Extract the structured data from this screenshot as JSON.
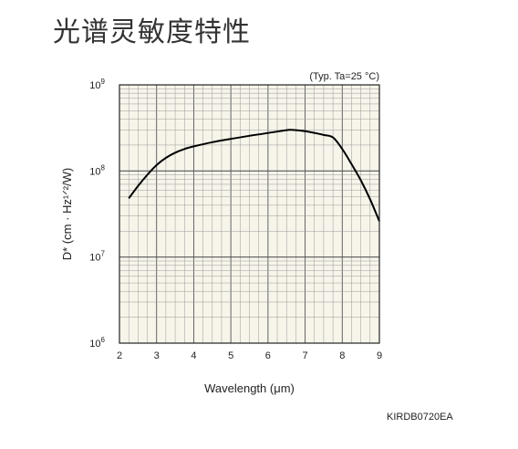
{
  "page": {
    "title": "光谱灵敏度特性",
    "figure_code": "KIRDB0720EA"
  },
  "chart_data": {
    "type": "line",
    "title": "",
    "condition": "(Typ. Ta=25 °C)",
    "xlabel": "Wavelength (μm)",
    "ylabel": "D* (cm · Hz¹ᐟ²/W)",
    "xlim": [
      2,
      9
    ],
    "ylim": [
      1000000,
      1000000000
    ],
    "yscale": "log",
    "grid": true,
    "x_ticks": [
      "2",
      "3",
      "4",
      "5",
      "6",
      "7",
      "8",
      "9"
    ],
    "y_ticks": [
      {
        "value": 1000000,
        "base": "10",
        "exp": "6"
      },
      {
        "value": 10000000,
        "base": "10",
        "exp": "7"
      },
      {
        "value": 100000000,
        "base": "10",
        "exp": "8"
      },
      {
        "value": 1000000000,
        "base": "10",
        "exp": "9"
      }
    ],
    "series": [
      {
        "x": [
          2.25,
          2.5,
          2.75,
          3.0,
          3.25,
          3.5,
          3.75,
          4.0,
          4.5,
          5.0,
          5.5,
          6.0,
          6.5,
          6.6,
          6.75,
          7.0,
          7.25,
          7.5,
          7.75,
          8.0,
          8.25,
          8.5,
          8.75,
          9.0
        ],
        "y": [
          48000000,
          67000000,
          90000000,
          117000000,
          142000000,
          163000000,
          180000000,
          193000000,
          216000000,
          236000000,
          256000000,
          276000000,
          298000000,
          300000000,
          298000000,
          290000000,
          277000000,
          262000000,
          245000000,
          180000000,
          120000000,
          78000000,
          47000000,
          26000000
        ]
      }
    ],
    "colors": {
      "background": "#f7f4ea",
      "line": "#000000",
      "grid_major": "#555555",
      "grid_minor": "#9a9a9a"
    }
  }
}
